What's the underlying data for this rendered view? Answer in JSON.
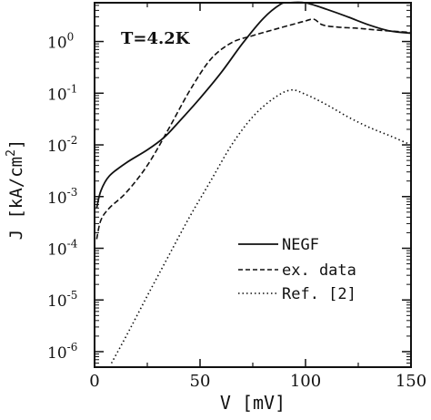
{
  "chart_data": {
    "type": "line",
    "annotation": "T=4.2K",
    "xlabel": "V [mV]",
    "ylabel": "J [kA/cm2]",
    "ylabel_base": "J [kA/cm",
    "ylabel_sup": "2",
    "ylabel_tail": "]",
    "xlim": [
      0,
      150
    ],
    "ylim_log10": [
      -6.3,
      0.75
    ],
    "y_scale": "log",
    "x_ticks": [
      {
        "value": 0,
        "label": "0"
      },
      {
        "value": 50,
        "label": "50"
      },
      {
        "value": 100,
        "label": "100"
      },
      {
        "value": 150,
        "label": "150"
      }
    ],
    "y_ticks": [
      {
        "exp": 0,
        "base": "10",
        "sup": "0"
      },
      {
        "exp": -1,
        "base": "10",
        "sup": "-1"
      },
      {
        "exp": -2,
        "base": "10",
        "sup": "-2"
      },
      {
        "exp": -3,
        "base": "10",
        "sup": "-3"
      },
      {
        "exp": -4,
        "base": "10",
        "sup": "-4"
      },
      {
        "exp": -5,
        "base": "10",
        "sup": "-5"
      },
      {
        "exp": -6,
        "base": "10",
        "sup": "-6"
      }
    ],
    "legend_position": "lower-right",
    "series": [
      {
        "name": "NEGF",
        "style": "solid",
        "points": [
          [
            1,
            0.0006
          ],
          [
            3,
            0.0013
          ],
          [
            7,
            0.0025
          ],
          [
            15,
            0.0045
          ],
          [
            25,
            0.008
          ],
          [
            33,
            0.014
          ],
          [
            40,
            0.028
          ],
          [
            50,
            0.08
          ],
          [
            60,
            0.25
          ],
          [
            70,
            0.9
          ],
          [
            80,
            2.8
          ],
          [
            88,
            5.2
          ],
          [
            92,
            6.0
          ],
          [
            100,
            5.6
          ],
          [
            110,
            4.2
          ],
          [
            120,
            3.0
          ],
          [
            130,
            2.1
          ],
          [
            140,
            1.6
          ],
          [
            150,
            1.45
          ]
        ]
      },
      {
        "name": "ex. data",
        "style": "dashed",
        "points": [
          [
            1,
            0.00015
          ],
          [
            3,
            0.00035
          ],
          [
            7,
            0.0006
          ],
          [
            15,
            0.0012
          ],
          [
            25,
            0.004
          ],
          [
            35,
            0.02
          ],
          [
            45,
            0.11
          ],
          [
            55,
            0.45
          ],
          [
            65,
            0.95
          ],
          [
            75,
            1.3
          ],
          [
            85,
            1.7
          ],
          [
            95,
            2.2
          ],
          [
            100,
            2.5
          ],
          [
            104,
            2.7
          ],
          [
            108,
            2.1
          ],
          [
            115,
            1.9
          ],
          [
            125,
            1.8
          ],
          [
            135,
            1.65
          ],
          [
            150,
            1.5
          ]
        ]
      },
      {
        "name": "Ref. [2]",
        "style": "dotted",
        "points": [
          [
            8,
            6e-07
          ],
          [
            15,
            2e-06
          ],
          [
            25,
            1.2e-05
          ],
          [
            35,
            7e-05
          ],
          [
            45,
            0.0004
          ],
          [
            55,
            0.002
          ],
          [
            65,
            0.01
          ],
          [
            75,
            0.035
          ],
          [
            85,
            0.08
          ],
          [
            93,
            0.115
          ],
          [
            100,
            0.095
          ],
          [
            110,
            0.06
          ],
          [
            120,
            0.035
          ],
          [
            130,
            0.022
          ],
          [
            140,
            0.015
          ],
          [
            150,
            0.01
          ]
        ]
      }
    ]
  }
}
